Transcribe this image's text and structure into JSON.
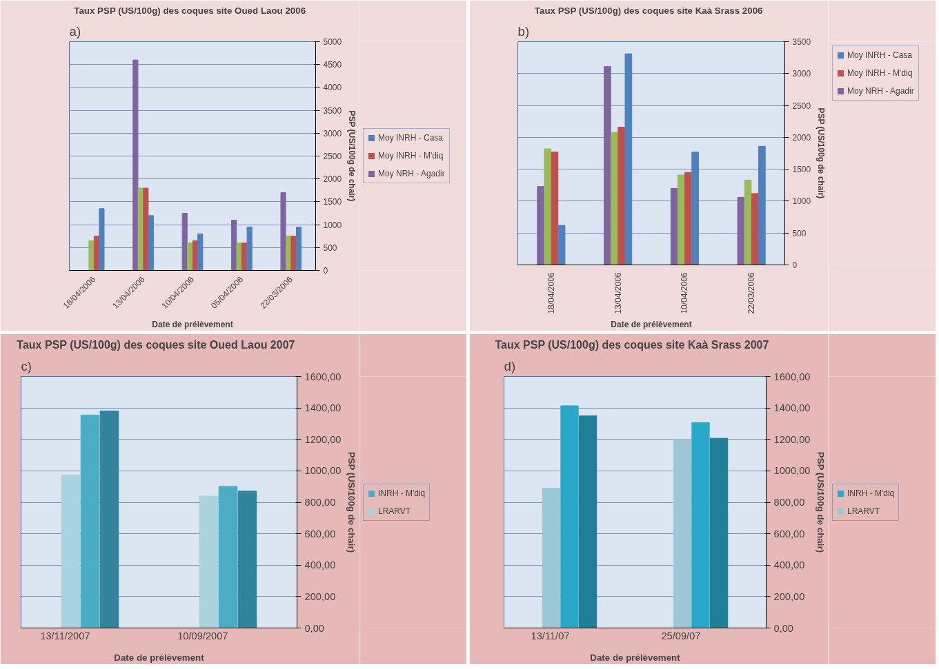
{
  "chart_data": [
    {
      "type": "bar",
      "title": "Taux  PSP (US/100g) des coques  site Oued Laou 2006",
      "xlabel": "Date de prélèvement",
      "ylabel": "PSP (US/100g de chair)",
      "annotations": [
        "a)"
      ],
      "categories": [
        "18/04/2006",
        "13/04/2006",
        "10/04/2006",
        "05/04/2006",
        "22/03/2006"
      ],
      "series": [
        {
          "name": "Moy NRH - Agadir",
          "color": "#8064a2",
          "values": [
            null,
            4600,
            1250,
            1100,
            1700
          ]
        },
        {
          "color": "#9bbb59",
          "values": [
            650,
            1800,
            600,
            600,
            750
          ]
        },
        {
          "name": "Moy INRH - M'diq",
          "color": "#c0504d",
          "values": [
            750,
            1800,
            650,
            600,
            750
          ]
        },
        {
          "name": "Moy INRH - Casa",
          "color": "#4f81bd",
          "values": [
            1350,
            1200,
            800,
            950,
            950
          ]
        }
      ],
      "ylim": [
        0,
        5000
      ],
      "yticks": [
        0,
        500,
        1000,
        1500,
        2000,
        2500,
        3000,
        3500,
        4000,
        4500,
        5000
      ],
      "grid": "y",
      "legend": "right"
    },
    {
      "type": "bar",
      "title": "Taux  PSP (US/100g) des coques  site Kaà Srass 2006",
      "xlabel": "Date de prélèvement",
      "ylabel": "PSP (US/100g de chair)",
      "annotations": [
        "b)"
      ],
      "categories": [
        "18/04/2006",
        "13/04/2006",
        "10/04/2006",
        "22/03/2006"
      ],
      "series": [
        {
          "name": "Moy NRH - Agadir",
          "color": "#8064a2",
          "values": [
            1230,
            3110,
            1200,
            1060
          ]
        },
        {
          "color": "#9bbb59",
          "values": [
            1820,
            2080,
            1410,
            1330
          ]
        },
        {
          "name": "Moy INRH - M'diq",
          "color": "#c0504d",
          "values": [
            1770,
            2160,
            1450,
            1120
          ]
        },
        {
          "name": "Moy INRH - Casa",
          "color": "#4f81bd",
          "values": [
            620,
            3310,
            1770,
            1860
          ]
        }
      ],
      "ylim": [
        0,
        3500
      ],
      "yticks": [
        0,
        500,
        1000,
        1500,
        2000,
        2500,
        3000,
        3500
      ],
      "grid": "y",
      "legend": "top right"
    },
    {
      "type": "bar",
      "title": "Taux  PSP (US/100g) des coques  site Oued Laou 2007",
      "xlabel": "Date de prélèvement",
      "ylabel": "PSP (US/100g de chair)",
      "annotations": [
        "c)"
      ],
      "categories": [
        "13/11/2007",
        "10/09/2007"
      ],
      "series": [
        {
          "name": "LRARVT",
          "color": "#a9d3de",
          "values": [
            973,
            839
          ]
        },
        {
          "name": "INRH - M'diq",
          "color": "#4bacc6",
          "values": [
            1355,
            901
          ]
        },
        {
          "color": "#31849b",
          "values": [
            1381,
            871
          ]
        }
      ],
      "ylim": [
        0,
        1600
      ],
      "yticks": [
        {
          "value": 0,
          "label": "0,00"
        },
        {
          "value": 200,
          "label": "200,00"
        },
        {
          "value": 400,
          "label": "400,00"
        },
        {
          "value": 600,
          "label": "600,00"
        },
        {
          "value": 800,
          "label": "800,00"
        },
        {
          "value": 1000,
          "label": "1000,00"
        },
        {
          "value": 1200,
          "label": "1200,00"
        },
        {
          "value": 1400,
          "label": "1400,00"
        },
        {
          "value": 1600,
          "label": "1600,00"
        }
      ],
      "grid": "y",
      "legend": "right"
    },
    {
      "type": "bar",
      "title": "Taux  PSP (US/100g) des coques  site Kaà Srass 2007",
      "xlabel": "Date de prélèvement",
      "ylabel": "PSP (US/100g de chair)",
      "annotations": [
        "d)"
      ],
      "categories": [
        "13/11/07",
        "25/09/07"
      ],
      "series": [
        {
          "name": "LRARVT",
          "color": "#9cc8d6",
          "values": [
            890,
            1202
          ]
        },
        {
          "name": "INRH - M'diq",
          "color": "#2ba8c9",
          "values": [
            1414,
            1307
          ]
        },
        {
          "color": "#1f7f97",
          "values": [
            1350,
            1207
          ]
        }
      ],
      "ylim": [
        0,
        1600
      ],
      "yticks": [
        {
          "value": 0,
          "label": "0,00"
        },
        {
          "value": 200,
          "label": "200,00"
        },
        {
          "value": 400,
          "label": "400,00"
        },
        {
          "value": 600,
          "label": "600,00"
        },
        {
          "value": 800,
          "label": "800,00"
        },
        {
          "value": 1000,
          "label": "1000,00"
        },
        {
          "value": 1200,
          "label": "1200,00"
        },
        {
          "value": 1400,
          "label": "1400,00"
        },
        {
          "value": 1600,
          "label": "1600,00"
        }
      ],
      "grid": "y",
      "legend": "right"
    }
  ]
}
